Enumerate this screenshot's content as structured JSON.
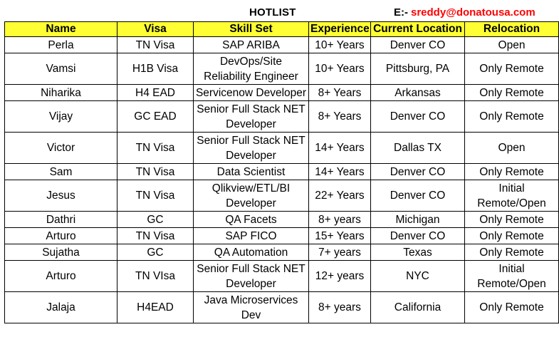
{
  "header": {
    "title": "HOTLIST",
    "email_prefix": "E:-",
    "email": "sreddy@donatousa.com"
  },
  "table": {
    "columns": [
      "Name",
      "Visa",
      "Skill Set",
      "Experience",
      "Current Location",
      "Relocation"
    ],
    "rows": [
      {
        "name": "Perla",
        "visa": "TN Visa",
        "skill": "SAP ARIBA",
        "experience": "10+ Years",
        "location": "Denver CO",
        "relocation": "Open"
      },
      {
        "name": "Vamsi",
        "visa": "H1B Visa",
        "skill": "DevOps/Site Reliability Engineer",
        "experience": "10+ Years",
        "location": "Pittsburg, PA",
        "relocation": "Only Remote"
      },
      {
        "name": "Niharika",
        "visa": "H4 EAD",
        "skill": "Servicenow Developer",
        "experience": "8+ Years",
        "location": "Arkansas",
        "relocation": "Only Remote"
      },
      {
        "name": "Vijay",
        "visa": "GC EAD",
        "skill": "Senior Full Stack NET Developer",
        "experience": "8+ Years",
        "location": "Denver CO",
        "relocation": "Only Remote"
      },
      {
        "name": "Victor",
        "visa": "TN Visa",
        "skill": "Senior Full Stack NET Developer",
        "experience": "14+ Years",
        "location": "Dallas TX",
        "relocation": "Open"
      },
      {
        "name": "Sam",
        "visa": "TN Visa",
        "skill": "Data Scientist",
        "experience": "14+ Years",
        "location": "Denver CO",
        "relocation": "Only Remote"
      },
      {
        "name": "Jesus",
        "visa": "TN Visa",
        "skill": "Qlikview/ETL/BI Developer",
        "experience": "22+ Years",
        "location": "Denver CO",
        "relocation": "Initial Remote/Open"
      },
      {
        "name": "Dathri",
        "visa": "GC",
        "skill": "QA Facets",
        "experience": "8+ years",
        "location": "Michigan",
        "relocation": "Only Remote"
      },
      {
        "name": "Arturo",
        "visa": "TN Visa",
        "skill": "SAP FICO",
        "experience": "15+ Years",
        "location": "Denver CO",
        "relocation": "Only Remote"
      },
      {
        "name": "Sujatha",
        "visa": "GC",
        "skill": "QA Automation",
        "experience": "7+ years",
        "location": "Texas",
        "relocation": "Only Remote"
      },
      {
        "name": "Arturo",
        "visa": "TN VIsa",
        "skill": "Senior Full Stack NET Developer",
        "experience": "12+ years",
        "location": "NYC",
        "relocation": "Initial Remote/Open"
      },
      {
        "name": "Jalaja",
        "visa": "H4EAD",
        "skill": "Java Microservices Dev",
        "experience": "8+ years",
        "location": "California",
        "relocation": "Only Remote"
      }
    ]
  }
}
